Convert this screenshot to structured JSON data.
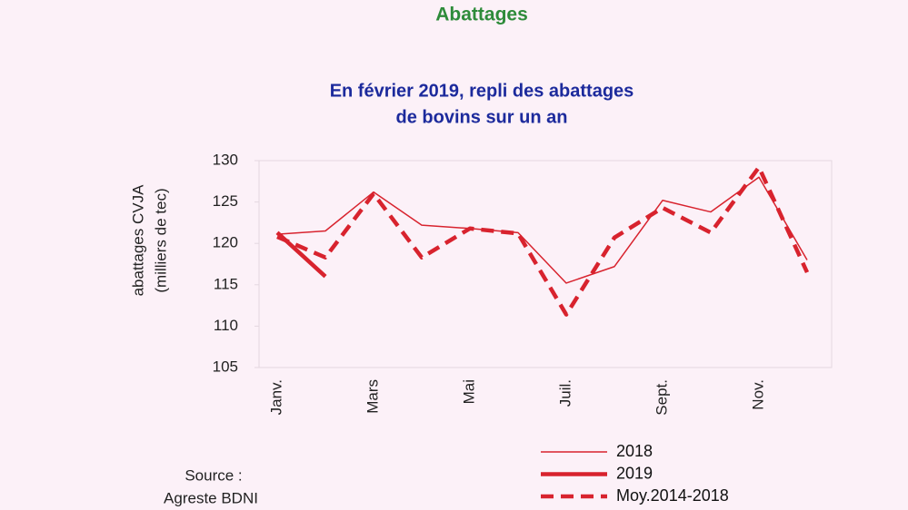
{
  "chart_data": {
    "type": "line",
    "title": "Abattages",
    "subtitle": [
      "En février 2019, repli des abattages",
      "de bovins sur un an"
    ],
    "y_label": [
      "abattages CVJA",
      "(milliers de tec)"
    ],
    "source": [
      "Source :",
      "Agreste BDNI"
    ],
    "categories": [
      "Janv.",
      null,
      "Mars",
      null,
      "Mai",
      null,
      "Juil.",
      null,
      "Sept.",
      null,
      "Nov.",
      null
    ],
    "ylim": [
      105,
      130
    ],
    "yticks": [
      105,
      110,
      115,
      120,
      125,
      130
    ],
    "legend": "bottom-right",
    "series": [
      {
        "name": "2018",
        "color": "#d8232e",
        "width": 1.5,
        "dashed": false,
        "values": [
          121.1,
          121.5,
          126.2,
          122.2,
          121.8,
          121.3,
          115.2,
          117.2,
          125.2,
          123.8,
          128,
          118
        ]
      },
      {
        "name": "2019",
        "color": "#d8232e",
        "width": 4.5,
        "dashed": false,
        "values": [
          121.3,
          116,
          null,
          null,
          null,
          null,
          null,
          null,
          null,
          null,
          null,
          null
        ]
      },
      {
        "name": "Moy.2014-2018",
        "color": "#d8232e",
        "width": 4.5,
        "dashed": true,
        "values": [
          120.8,
          118.3,
          126,
          118.3,
          121.8,
          121.2,
          111.4,
          120.7,
          124.3,
          121.3,
          129.2,
          116.5
        ]
      }
    ]
  }
}
